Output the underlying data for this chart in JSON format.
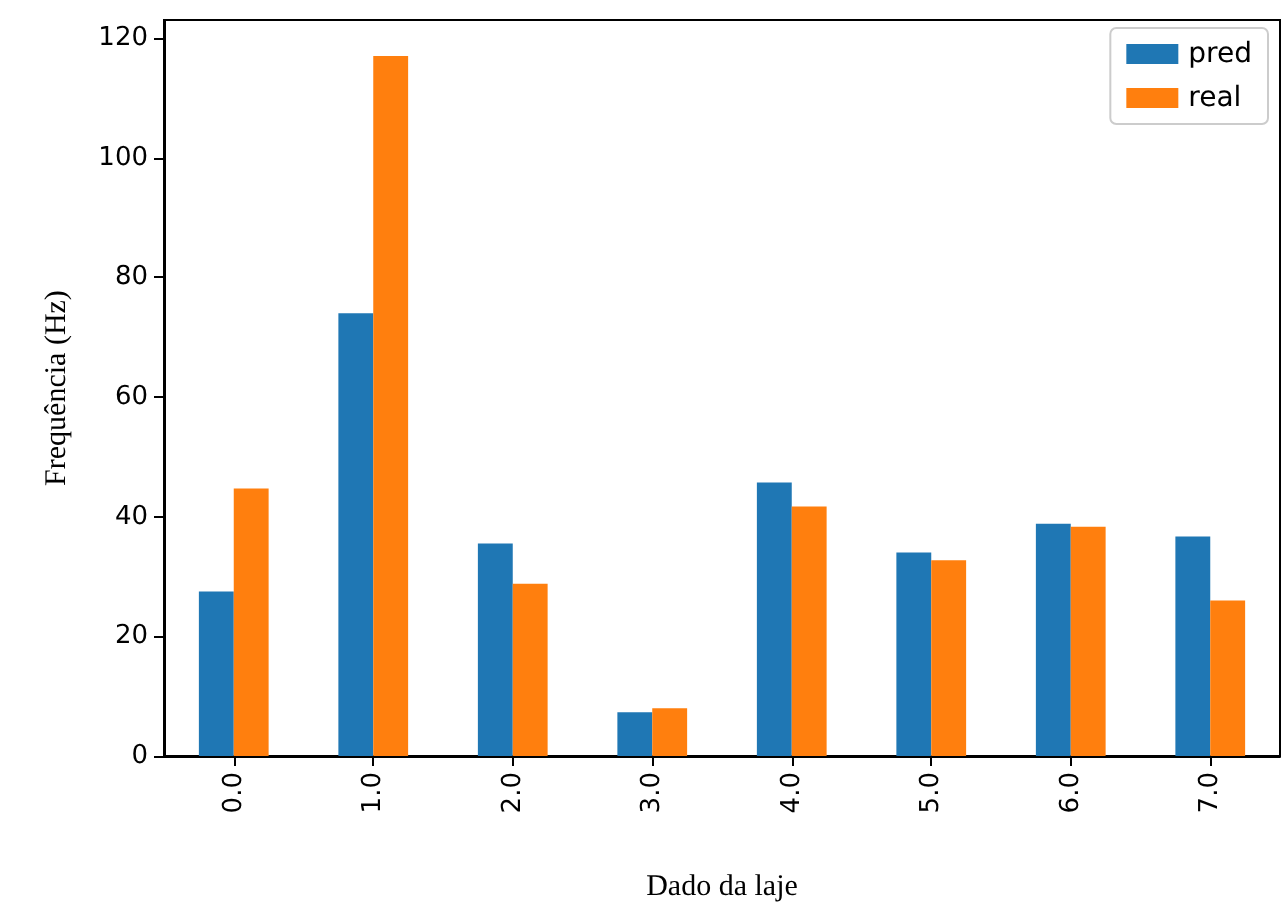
{
  "chart_data": {
    "type": "bar",
    "xlabel": "Dado da laje",
    "ylabel": "Frequência (Hz)",
    "categories": [
      "0.0",
      "1.0",
      "2.0",
      "3.0",
      "4.0",
      "5.0",
      "6.0",
      "7.0"
    ],
    "series": [
      {
        "name": "pred",
        "color": "#1f77b4",
        "values": [
          27.5,
          74,
          35.5,
          7.3,
          45.7,
          34,
          38.8,
          36.7
        ]
      },
      {
        "name": "real",
        "color": "#ff7f0e",
        "values": [
          44.7,
          117,
          28.8,
          8,
          41.7,
          32.7,
          38.3,
          26
        ]
      }
    ],
    "ylim": [
      0,
      123
    ],
    "yticks": [
      0,
      20,
      40,
      60,
      80,
      100,
      120
    ],
    "grid": false,
    "legend": "top right"
  }
}
